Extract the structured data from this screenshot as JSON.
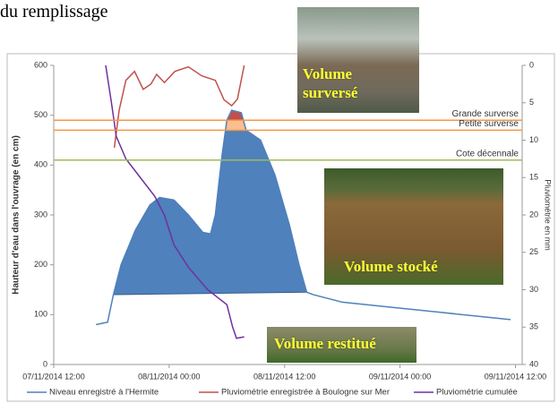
{
  "caption": "du remplissage",
  "photos": [
    {
      "label": "Volume surversé"
    },
    {
      "label": "Volume stocké"
    },
    {
      "label": "Volume restitué"
    }
  ],
  "chart_data": {
    "type": "line",
    "y_label": "Hauteur d'eau dans l'ouvrage (en cm)",
    "y2_label": "Pluviométrie en mm",
    "xlim": [
      0,
      48.7
    ],
    "xticks": [
      {
        "value": 0,
        "label": "07/11/2014 12:00"
      },
      {
        "value": 12,
        "label": "08/11/2014 00:00"
      },
      {
        "value": 24,
        "label": "08/11/2014 12:00"
      },
      {
        "value": 36,
        "label": "09/11/2014 00:00"
      },
      {
        "value": 48,
        "label": "09/11/2014 12:00"
      }
    ],
    "ylim": [
      0,
      600
    ],
    "yticks": [
      0,
      100,
      200,
      300,
      400,
      500,
      600
    ],
    "y2lim": [
      0,
      40
    ],
    "y2_inverted": true,
    "y2ticks": [
      0,
      5,
      10,
      15,
      20,
      25,
      30,
      35,
      40
    ],
    "series": [
      {
        "name": "Niveau enregistré à l'Hermite",
        "color": "#4f81bd",
        "fill": true,
        "fill_color": "#4f81bd",
        "x": [
          4.4,
          5.6,
          6.2,
          7,
          8.5,
          10,
          11,
          12.5,
          14,
          15.5,
          16.3,
          16.8,
          17.5,
          18,
          18.5,
          19.5,
          20,
          21.5,
          23,
          24.5,
          25.5,
          26.3,
          27,
          30,
          35,
          40,
          45,
          47.5
        ],
        "values": [
          80,
          85,
          140,
          200,
          270,
          320,
          335,
          330,
          300,
          265,
          262,
          300,
          420,
          490,
          510,
          505,
          470,
          450,
          380,
          280,
          200,
          145,
          140,
          125,
          115,
          105,
          95,
          90
        ]
      },
      {
        "name": "Pluviométrie enregistrée à Boulogne sur Mer",
        "color": "#c0504d",
        "axis": "y2",
        "x": [
          6.3,
          6.8,
          7.5,
          8.4,
          9.3,
          10.1,
          10.7,
          11.5,
          12.6,
          14,
          15.4,
          16.8,
          17.7,
          18.5,
          19.1,
          19.8
        ],
        "values": [
          11,
          6,
          2,
          0.8,
          3.2,
          2.5,
          1.2,
          2.3,
          0.8,
          0.2,
          1.4,
          2,
          4.6,
          5.4,
          4.5,
          0
        ]
      },
      {
        "name": "Pluviométrie cumulée",
        "color": "#7030a0",
        "axis": "y2",
        "x": [
          5.4,
          6,
          6.5,
          7.5,
          9,
          10.5,
          11.5,
          12.5,
          14,
          16,
          18,
          18.6,
          19,
          19.8
        ],
        "values": [
          0,
          5,
          9.5,
          12.5,
          15,
          17.5,
          20,
          24,
          27,
          30,
          32,
          35,
          36.5,
          36.3
        ]
      }
    ],
    "reference_lines": [
      {
        "label": "Grande surverse",
        "value": 490,
        "color": "#f79646",
        "fill_color": "#c0504d"
      },
      {
        "label": "Petite surverse",
        "value": 470,
        "color": "#f79646",
        "fill_color": "#fabf8f"
      },
      {
        "label": "Cote décennale",
        "value": 410,
        "color": "#9bbb59"
      }
    ]
  }
}
